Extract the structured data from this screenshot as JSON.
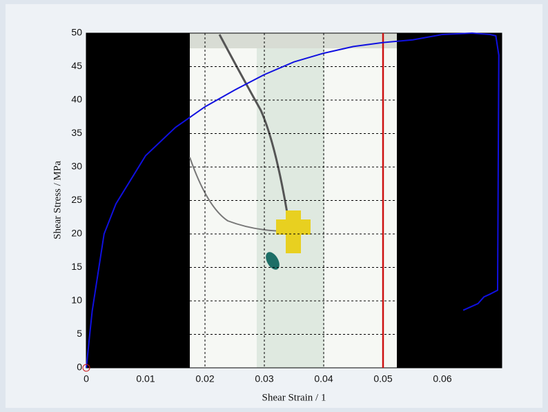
{
  "chart_data": {
    "type": "line",
    "xlabel": "Shear Strain / 1",
    "ylabel": "Shear Stress / MPa",
    "x": [
      0,
      0.001,
      0.003,
      0.005,
      0.01,
      0.015,
      0.02,
      0.025,
      0.03,
      0.035,
      0.04,
      0.045,
      0.05,
      0.055,
      0.06,
      0.065,
      0.068,
      0.069,
      0.0695,
      0.0693,
      0.068,
      0.067,
      0.066,
      0.0635
    ],
    "series": [
      {
        "color": "#1010e0",
        "values": [
          0,
          8.5,
          20,
          24.5,
          31.7,
          35.9,
          39,
          41.5,
          43.8,
          45.7,
          47,
          48,
          48.6,
          49,
          49.8,
          50,
          49.8,
          49.6,
          46.7,
          11.6,
          11,
          10.6,
          9.6,
          8.6
        ]
      }
    ],
    "cursor_x": 0.05,
    "cursor_color": "#cc1111",
    "xlim": [
      0,
      0.07
    ],
    "ylim": [
      0,
      50
    ],
    "xticks": [
      0,
      0.01,
      0.02,
      0.03,
      0.04,
      0.05,
      0.06
    ],
    "yticks": [
      0,
      5,
      10,
      15,
      20,
      25,
      30,
      35,
      40,
      45,
      50
    ],
    "grid": true
  }
}
